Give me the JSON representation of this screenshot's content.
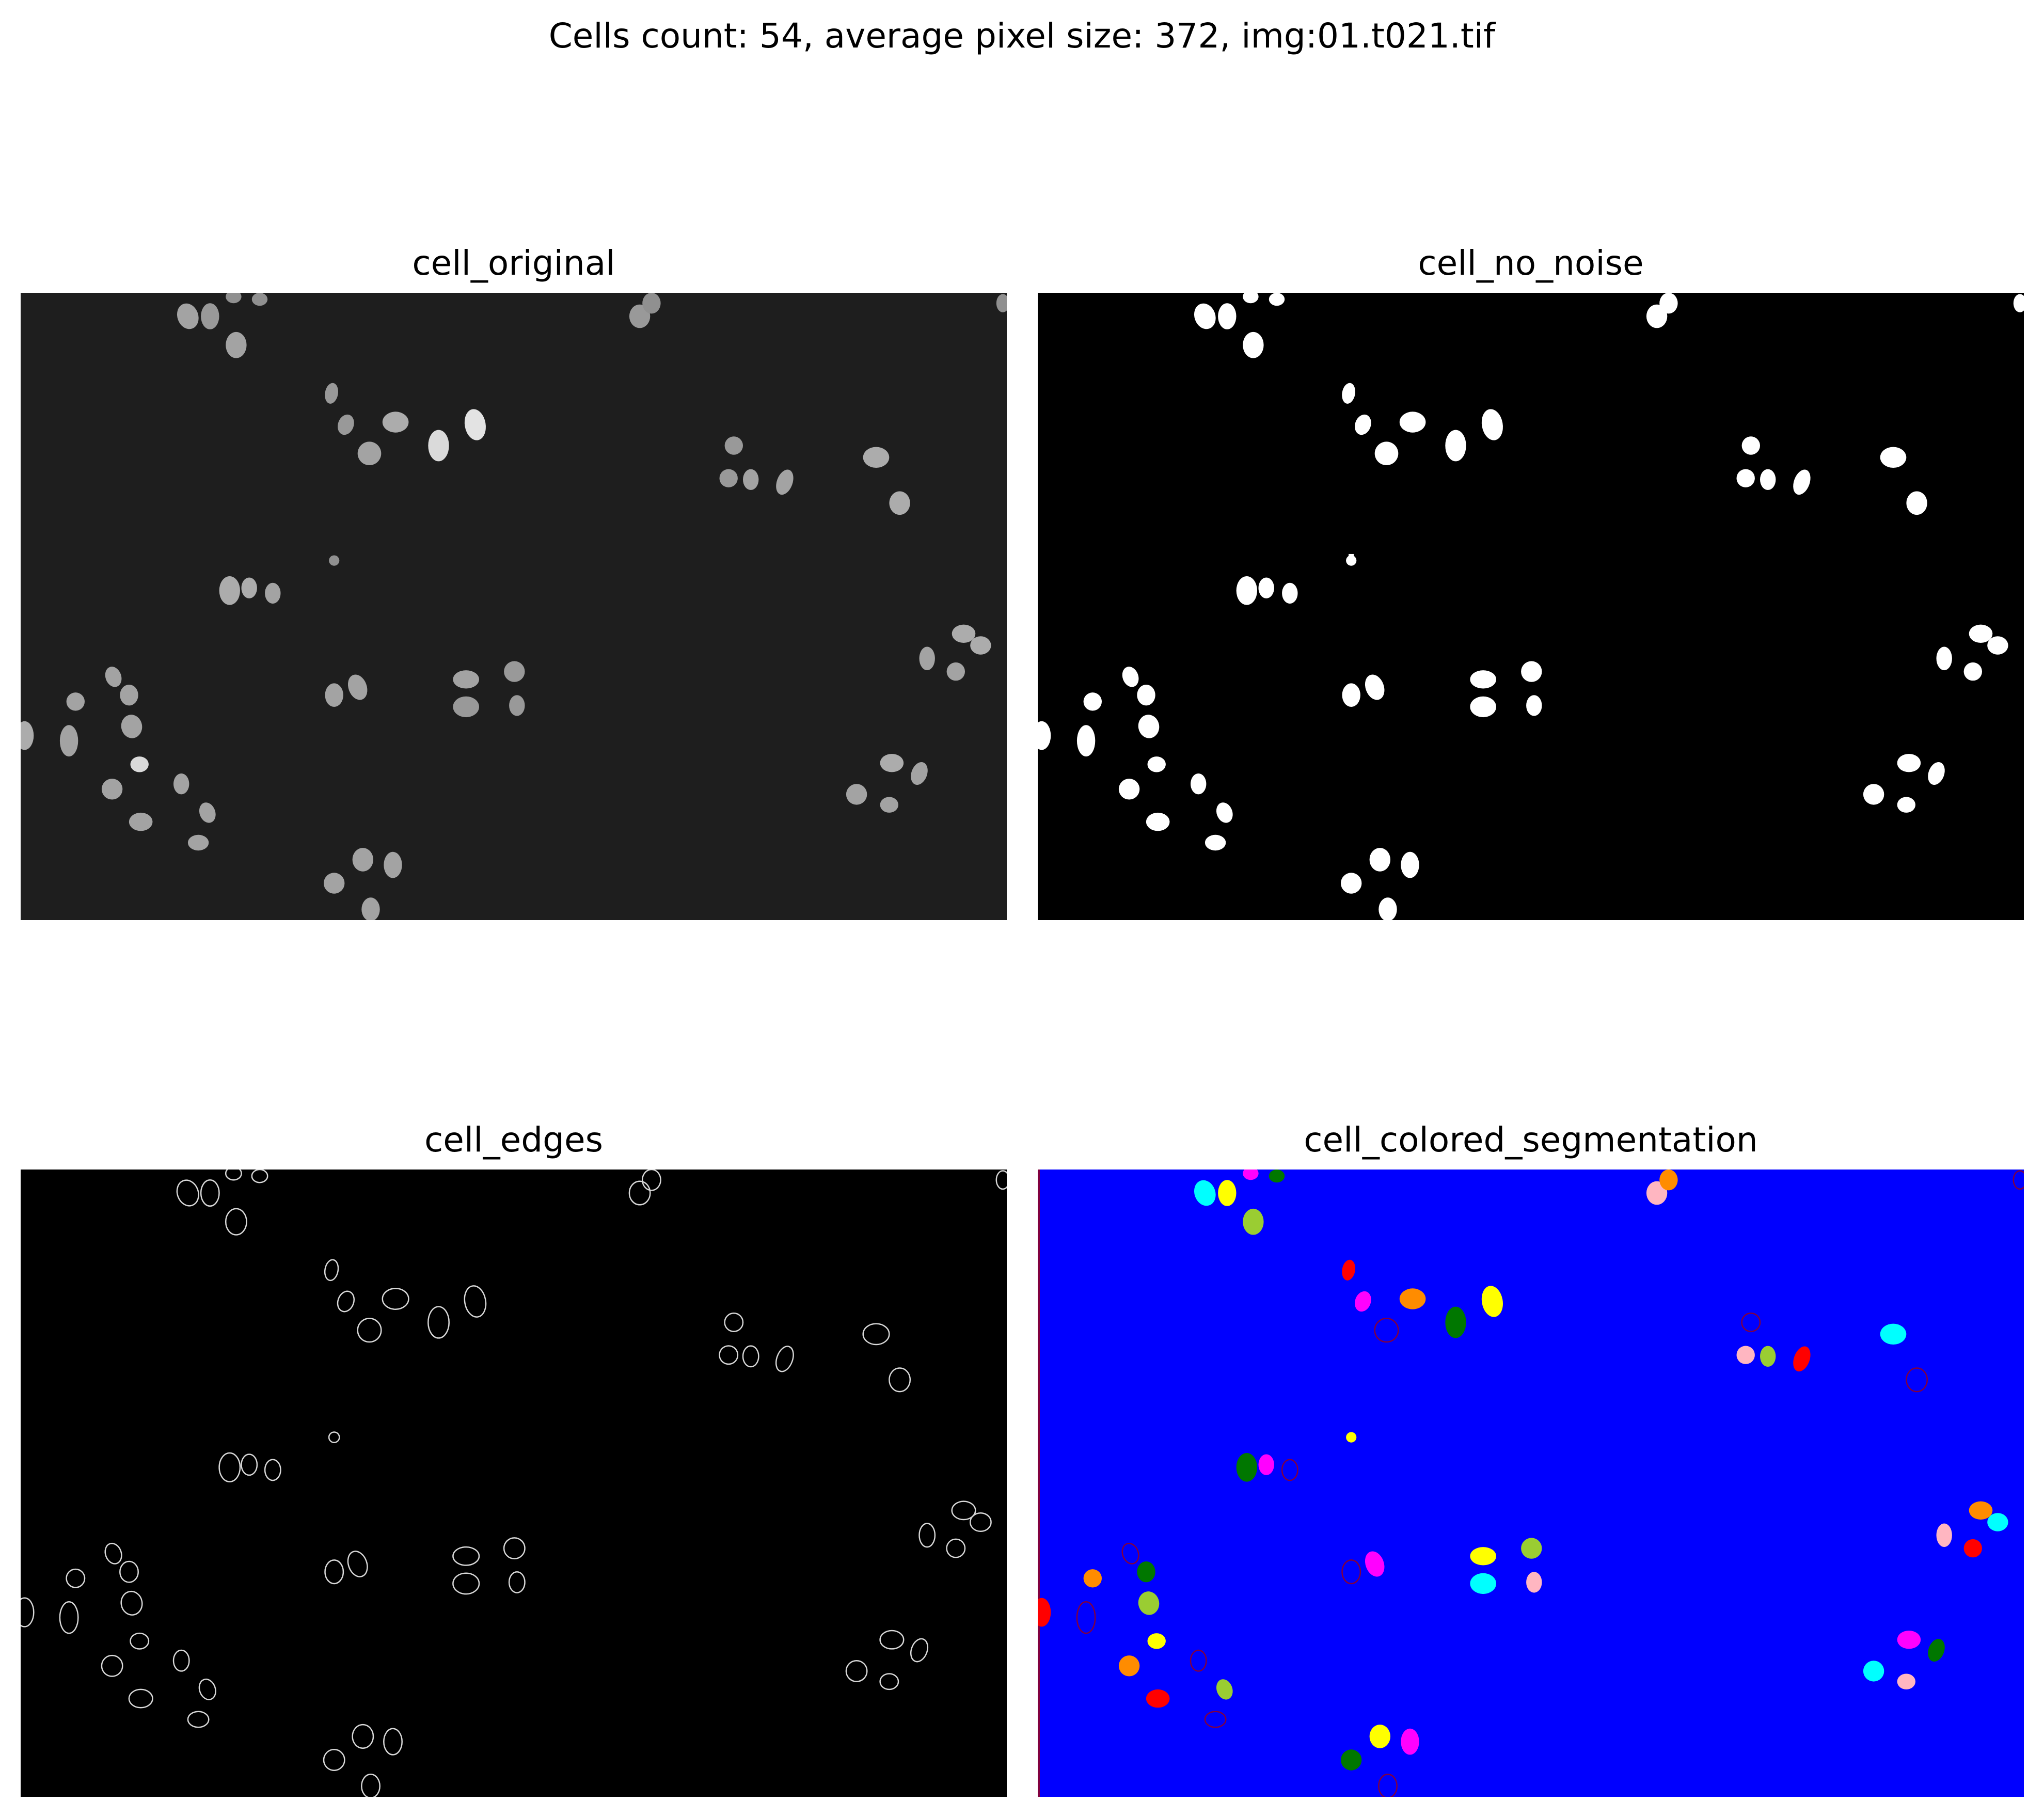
{
  "title": "Cells count: 54, average pixel size: 372, img:01.t021.tif",
  "panels": {
    "original": {
      "title": "cell_original"
    },
    "no_noise": {
      "title": "cell_no_noise"
    },
    "edges": {
      "title": "cell_edges"
    },
    "segmentation": {
      "title": "cell_colored_segmentation"
    }
  },
  "colors": {
    "original_background": "#1e1e1e",
    "original_cell": "#8a8a8a",
    "mask_background": "#000000",
    "mask_cell": "#ffffff",
    "edge_background": "#000000",
    "edge_line": "#d8d8d8",
    "segmentation_background": "#0000ff",
    "segmentation_outline": "#800040",
    "segmentation_palette": [
      "#ff0000",
      "#ff00ff",
      "#ffff00",
      "#00ffff",
      "#007700",
      "#9acd32",
      "#ff8c00",
      "#ffb6c1"
    ]
  }
}
